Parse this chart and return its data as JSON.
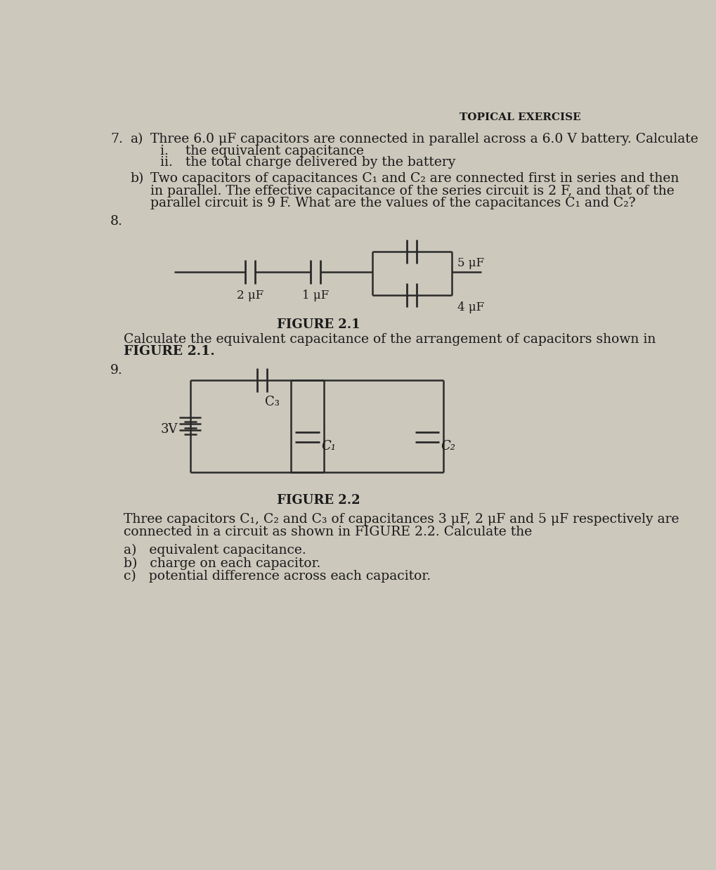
{
  "bg_color": "#ccc8bc",
  "title": "TOPICAL EXERCISE",
  "q7_label": "7.",
  "q7a_label": "a)",
  "q7a_text": "Three 6.0 μF capacitors are connected in parallel across a 6.0 V battery. Calculate",
  "q7a_i": "i.    the equivalent capacitance",
  "q7a_ii": "ii.   the total charge delivered by the battery",
  "q7b_label": "b)",
  "q7b_line1": "Two capacitors of capacitances C₁ and C₂ are connected first in series and then",
  "q7b_line2": "in parallel. The effective capacitance of the series circuit is 2 F, and that of the",
  "q7b_line3": "parallel circuit is 9 F. What are the values of the capacitances C₁ and C₂?",
  "q8_label": "8.",
  "q8_fig_label": "FIGURE 2.1",
  "q8_text1": "Calculate the equivalent capacitance of the arrangement of capacitors shown in",
  "q8_text2": "FIGURE 2.1.",
  "q9_label": "9.",
  "q9_fig_label": "FIGURE 2.2",
  "q9_text1": "Three capacitors C₁, C₂ and C₃ of capacitances 3 μF, 2 μF and 5 μF respectively are",
  "q9_text2": "connected in a circuit as shown in FIGURE 2.2. Calculate the",
  "q9a": "a)   equivalent capacitance.",
  "q9b": "b)   charge on each capacitor.",
  "q9c": "c)   potential difference across each capacitor.",
  "fig21_cap1": "2 μF",
  "fig21_cap2": "1 μF",
  "fig21_cap3": "5 μF",
  "fig21_cap4": "4 μF",
  "fig22_battery": "3V",
  "fig22_c1": "C₁",
  "fig22_c2": "C₂",
  "fig22_c3": "C₃",
  "text_color": "#1a1a1a",
  "line_color": "#2a2a2a",
  "fs": 13.5,
  "fs_small": 11
}
